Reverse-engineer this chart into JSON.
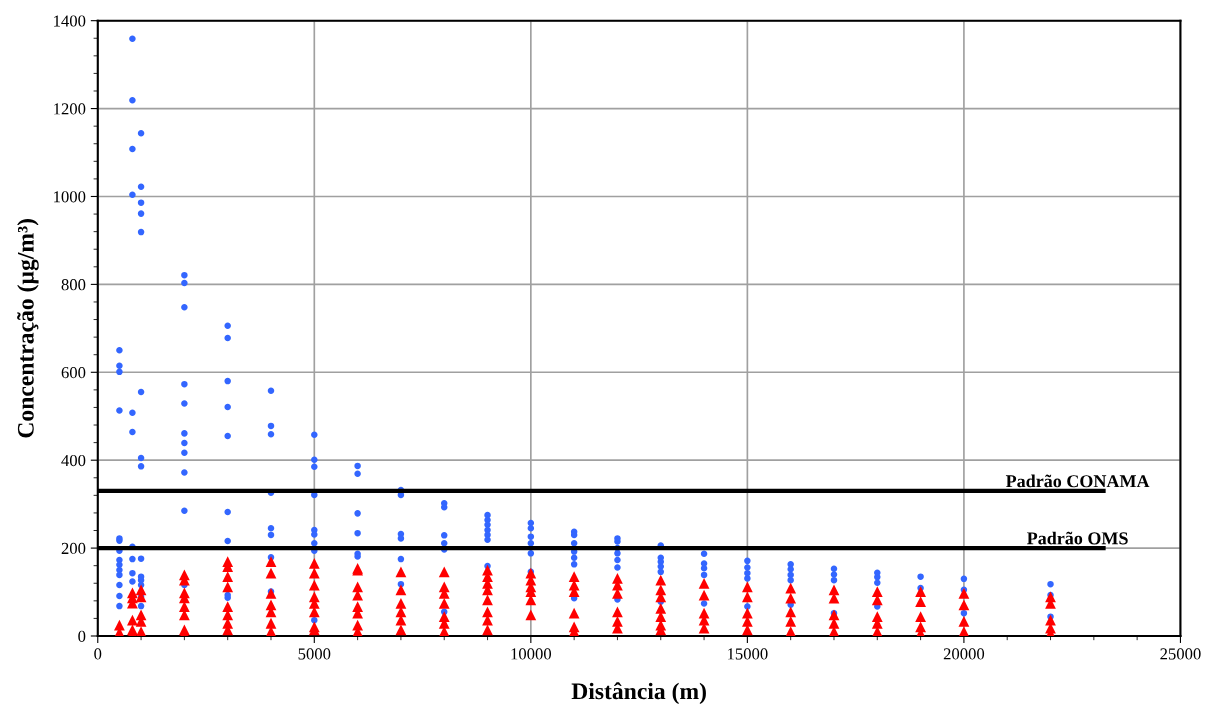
{
  "chart_data": {
    "type": "scatter",
    "xlabel": "Distância (m)",
    "ylabel": "Concentração (µg/m³)",
    "xlim": [
      0,
      25000
    ],
    "xticks": [
      0,
      5000,
      10000,
      15000,
      20000,
      25000
    ],
    "ylim": [
      0,
      1400
    ],
    "yticks": [
      0,
      200,
      400,
      600,
      800,
      1000,
      1200,
      1400
    ],
    "grid": true,
    "legend": false,
    "ref_lines": [
      {
        "axis": "y",
        "value": 330,
        "label": "Padrão CONAMA",
        "color": "#000000",
        "line_style": "solid"
      },
      {
        "axis": "y",
        "value": 200,
        "label": "Padrão OMS",
        "color": "#000000",
        "line_style": "solid"
      }
    ],
    "series": [
      {
        "color": "#3366ff",
        "marker": "circle",
        "x": [
          500,
          500,
          500,
          500,
          500,
          500,
          500,
          500,
          500,
          500,
          500,
          500,
          500,
          500,
          800,
          800,
          800,
          800,
          800,
          800,
          800,
          800,
          800,
          800,
          1000,
          1000,
          1000,
          1000,
          1000,
          1000,
          1000,
          1000,
          1000,
          1000,
          1000,
          1000,
          1000,
          1000,
          2000,
          2000,
          2000,
          2000,
          2000,
          2000,
          2000,
          2000,
          2000,
          2000,
          2000,
          3000,
          3000,
          3000,
          3000,
          3000,
          3000,
          3000,
          3000,
          3000,
          4000,
          4000,
          4000,
          4000,
          4000,
          4000,
          4000,
          4000,
          5000,
          5000,
          5000,
          5000,
          5000,
          5000,
          5000,
          5000,
          5000,
          6000,
          6000,
          6000,
          6000,
          6000,
          6000,
          7000,
          7000,
          7000,
          7000,
          7000,
          7000,
          8000,
          8000,
          8000,
          8000,
          8000,
          8000,
          9000,
          9000,
          9000,
          9000,
          9000,
          9000,
          9000,
          10000,
          10000,
          10000,
          10000,
          10000,
          10000,
          11000,
          11000,
          11000,
          11000,
          11000,
          11000,
          11000,
          12000,
          12000,
          12000,
          12000,
          12000,
          12000,
          12000,
          13000,
          13000,
          13000,
          13000,
          13000,
          13000,
          14000,
          14000,
          14000,
          14000,
          14000,
          15000,
          15000,
          15000,
          15000,
          15000,
          16000,
          16000,
          16000,
          16000,
          16000,
          17000,
          17000,
          17000,
          17000,
          18000,
          18000,
          18000,
          18000,
          19000,
          19000,
          20000,
          20000,
          20000,
          22000,
          22000,
          22000
        ],
        "values": [
          650,
          615,
          601,
          513,
          222,
          217,
          194,
          173,
          162,
          150,
          139,
          116,
          91,
          68,
          1359,
          1219,
          1108,
          1004,
          508,
          464,
          203,
          175,
          143,
          124,
          1144,
          1022,
          986,
          961,
          919,
          555,
          405,
          386,
          176,
          135,
          127,
          116,
          89,
          68,
          821,
          803,
          748,
          573,
          529,
          461,
          439,
          417,
          372,
          285,
          116,
          706,
          678,
          580,
          521,
          455,
          282,
          216,
          93,
          87,
          558,
          478,
          459,
          326,
          245,
          230,
          179,
          101,
          458,
          401,
          385,
          321,
          241,
          231,
          211,
          194,
          36,
          387,
          369,
          279,
          234,
          187,
          181,
          332,
          321,
          232,
          222,
          175,
          118,
          302,
          293,
          229,
          211,
          197,
          55,
          275,
          264,
          253,
          241,
          230,
          219,
          159,
          257,
          245,
          226,
          211,
          188,
          146,
          237,
          230,
          211,
          192,
          178,
          163,
          86,
          222,
          215,
          200,
          188,
          173,
          156,
          83,
          206,
          178,
          169,
          158,
          146,
          78,
          187,
          165,
          154,
          139,
          74,
          171,
          156,
          143,
          131,
          67,
          163,
          152,
          139,
          127,
          71,
          153,
          140,
          127,
          52,
          144,
          134,
          121,
          67,
          135,
          109,
          130,
          105,
          52,
          118,
          93,
          44
        ]
      },
      {
        "color": "#ff0000",
        "marker": "triangle",
        "x": [
          500,
          500,
          800,
          800,
          800,
          800,
          800,
          800,
          1000,
          1000,
          1000,
          1000,
          1000,
          2000,
          2000,
          2000,
          2000,
          2000,
          2000,
          2000,
          2000,
          3000,
          3000,
          3000,
          3000,
          3000,
          3000,
          3000,
          3000,
          4000,
          4000,
          4000,
          4000,
          4000,
          4000,
          4000,
          5000,
          5000,
          5000,
          5000,
          5000,
          5000,
          5000,
          5000,
          6000,
          6000,
          6000,
          6000,
          6000,
          6000,
          6000,
          6000,
          7000,
          7000,
          7000,
          7000,
          7000,
          7000,
          8000,
          8000,
          8000,
          8000,
          8000,
          8000,
          8000,
          9000,
          9000,
          9000,
          9000,
          9000,
          9000,
          9000,
          9000,
          10000,
          10000,
          10000,
          10000,
          10000,
          10000,
          11000,
          11000,
          11000,
          11000,
          11000,
          11000,
          12000,
          12000,
          12000,
          12000,
          12000,
          12000,
          13000,
          13000,
          13000,
          13000,
          13000,
          13000,
          13000,
          14000,
          14000,
          14000,
          14000,
          14000,
          15000,
          15000,
          15000,
          15000,
          15000,
          16000,
          16000,
          16000,
          16000,
          16000,
          17000,
          17000,
          17000,
          17000,
          17000,
          18000,
          18000,
          18000,
          18000,
          18000,
          19000,
          19000,
          19000,
          19000,
          19000,
          20000,
          20000,
          20000,
          20000,
          22000,
          22000,
          22000,
          22000,
          22000
        ],
        "values": [
          25,
          8,
          98,
          87,
          75,
          36,
          14,
          7,
          105,
          89,
          48,
          33,
          10,
          139,
          127,
          98,
          87,
          67,
          48,
          14,
          7,
          169,
          158,
          135,
          112,
          67,
          48,
          29,
          14,
          169,
          143,
          97,
          71,
          55,
          29,
          10,
          165,
          143,
          116,
          89,
          74,
          55,
          21,
          14,
          154,
          150,
          112,
          93,
          67,
          52,
          25,
          10,
          146,
          105,
          74,
          55,
          36,
          14,
          146,
          112,
          97,
          74,
          44,
          29,
          10,
          150,
          135,
          120,
          105,
          82,
          55,
          36,
          14,
          143,
          127,
          112,
          101,
          82,
          48,
          135,
          116,
          101,
          52,
          21,
          10,
          131,
          116,
          97,
          55,
          33,
          18,
          127,
          105,
          89,
          63,
          44,
          25,
          14,
          120,
          93,
          52,
          36,
          18,
          112,
          89,
          52,
          33,
          14,
          109,
          86,
          55,
          33,
          10,
          105,
          86,
          48,
          29,
          10,
          101,
          82,
          44,
          29,
          10,
          101,
          78,
          44,
          21,
          6,
          97,
          71,
          33,
          10,
          89,
          74,
          36,
          18,
          6
        ]
      }
    ]
  }
}
